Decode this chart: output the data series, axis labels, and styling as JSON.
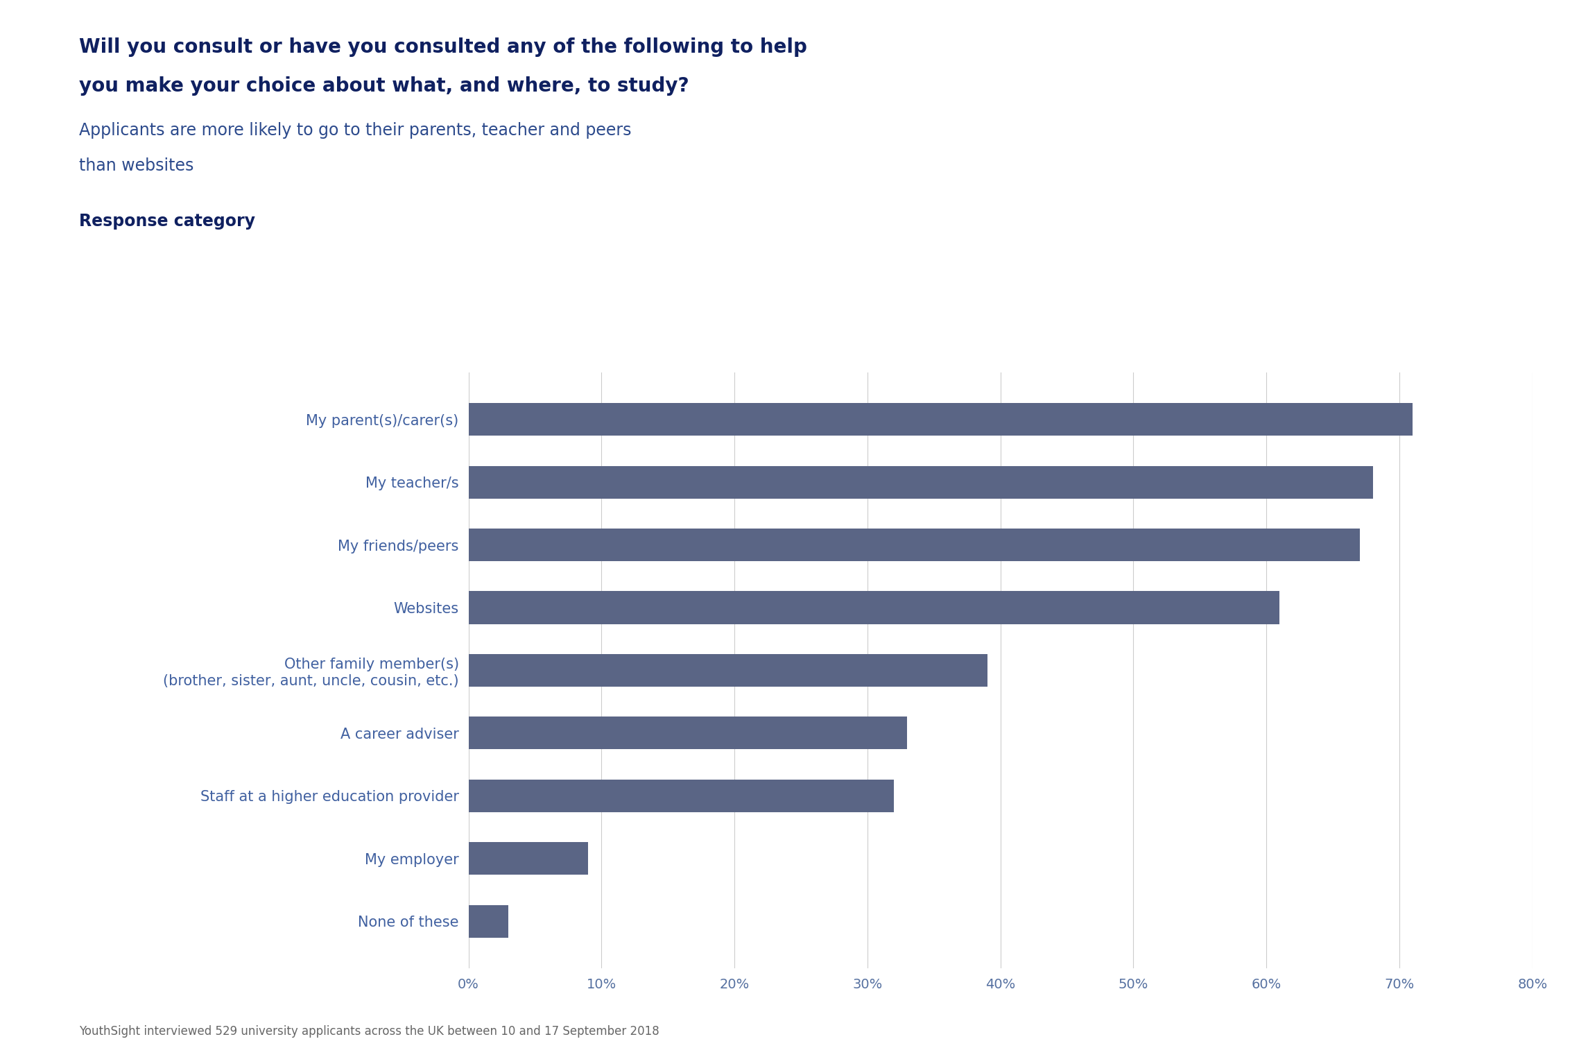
{
  "title_line1": "Will you consult or have you consulted any of the following to help",
  "title_line2": "you make your choice about what, and where, to study?",
  "subtitle_line1": "Applicants are more likely to go to their parents, teacher and peers",
  "subtitle_line2": "than websites",
  "axis_label": "Response category",
  "categories": [
    "My parent(s)/carer(s)",
    "My teacher/s",
    "My friends/peers",
    "Websites",
    "Other family member(s)\n(brother, sister, aunt, uncle, cousin, etc.)",
    "A career adviser",
    "Staff at a higher education provider",
    "My employer",
    "None of these"
  ],
  "values": [
    71,
    68,
    67,
    61,
    39,
    33,
    32,
    9,
    3
  ],
  "bar_color": "#5A6585",
  "background_color": "#ffffff",
  "title_color": "#0f2060",
  "subtitle_color": "#2c4a8c",
  "axis_label_color": "#0f2060",
  "tick_label_color": "#5570a0",
  "category_label_color": "#4060a0",
  "footer_text": "YouthSight interviewed 529 university applicants across the UK between 10 and 17 September 2018",
  "footer_color": "#666666",
  "xlim": [
    0,
    80
  ],
  "xticks": [
    0,
    10,
    20,
    30,
    40,
    50,
    60,
    70,
    80
  ],
  "xtick_labels": [
    "0%",
    "10%",
    "20%",
    "30%",
    "40%",
    "50%",
    "60%",
    "70%",
    "80%"
  ],
  "title_fontsize": 20,
  "subtitle_fontsize": 17,
  "axis_label_fontsize": 17,
  "tick_fontsize": 14,
  "category_fontsize": 15,
  "footer_fontsize": 12,
  "bar_height": 0.52
}
